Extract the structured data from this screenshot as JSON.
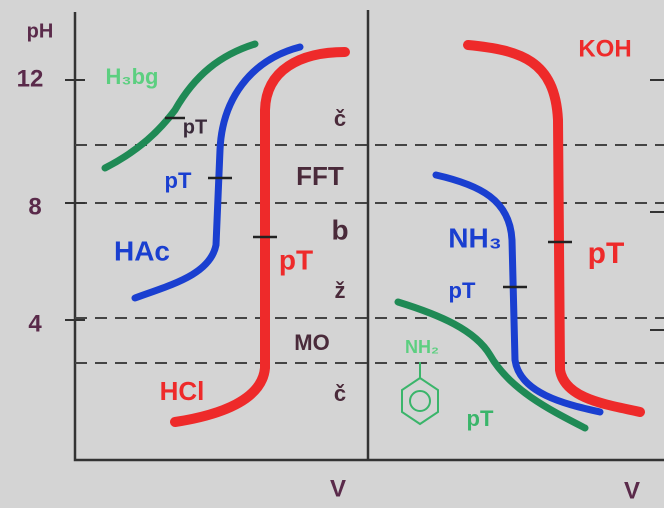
{
  "axis": {
    "y_label": "pH",
    "y_ticks": [
      "12",
      "8",
      "4"
    ],
    "x_label_left": "V",
    "x_label_right": "V"
  },
  "left_panel": {
    "labels": {
      "h3bg": "H₃bg",
      "h3bg_pt": "pT",
      "hac_pt": "pT",
      "hac": "HAc",
      "hcl_pt": "pT",
      "hcl": "HCl"
    },
    "indicators": [
      "č",
      "FFT",
      "b",
      "ž",
      "MO",
      "č"
    ]
  },
  "right_panel": {
    "labels": {
      "koh": "KOH",
      "koh_pt": "pT",
      "nh3": "NH₃",
      "nh3_pt": "pT",
      "nh2": "NH₂",
      "aniline_pt": "pT"
    }
  }
}
